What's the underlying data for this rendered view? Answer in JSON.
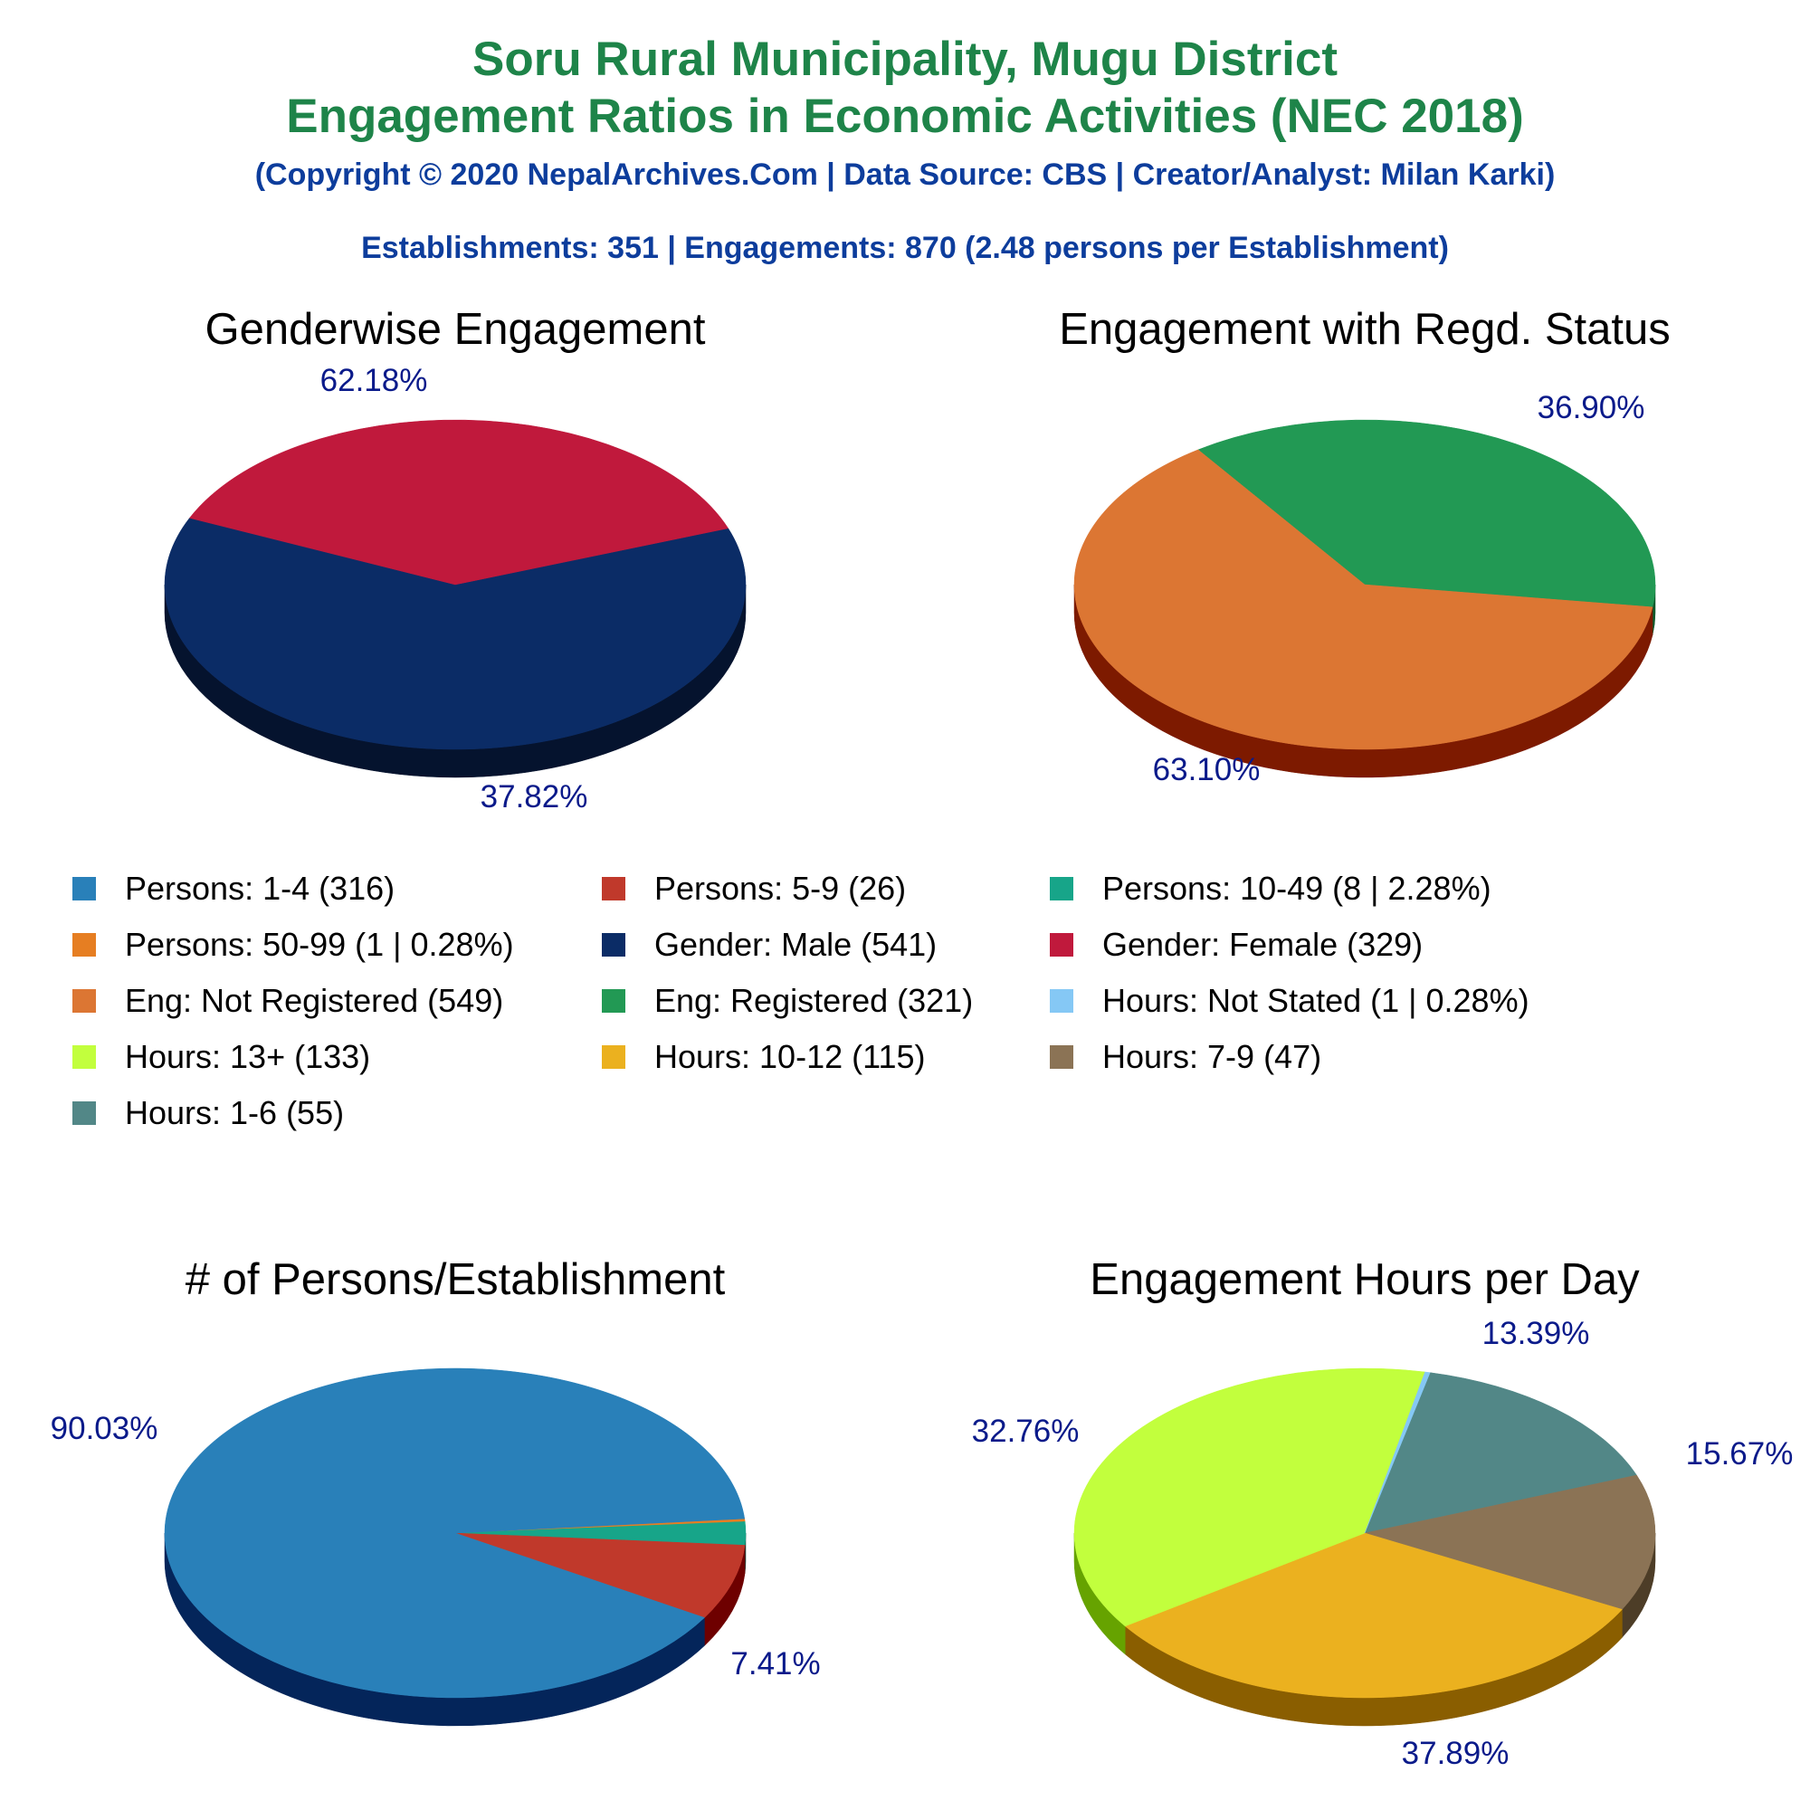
{
  "header": {
    "title_line1": "Soru Rural Municipality, Mugu District",
    "title_line2": "Engagement Ratios in Economic Activities (NEC 2018)",
    "copyright": "(Copyright © 2020 NepalArchives.Com | Data Source: CBS | Creator/Analyst: Milan Karki)",
    "summary": "Establishments: 351 | Engagements: 870 (2.48 persons per Establishment)"
  },
  "legend": [
    {
      "label": "Persons: 1-4 (316)",
      "color": "#2980b9"
    },
    {
      "label": "Persons: 5-9 (26)",
      "color": "#c0392b"
    },
    {
      "label": "Persons: 10-49 (8 | 2.28%)",
      "color": "#17a589"
    },
    {
      "label": "Persons: 50-99 (1 | 0.28%)",
      "color": "#e67e22"
    },
    {
      "label": "Gender: Male (541)",
      "color": "#0b2c66"
    },
    {
      "label": "Gender: Female (329)",
      "color": "#c0193c"
    },
    {
      "label": "Eng: Not Registered (549)",
      "color": "#dc7633"
    },
    {
      "label": "Eng: Registered (321)",
      "color": "#229954"
    },
    {
      "label": "Hours: Not Stated (1 | 0.28%)",
      "color": "#85c8f5"
    },
    {
      "label": "Hours: 13+ (133)",
      "color": "#c2ff3d"
    },
    {
      "label": "Hours: 10-12 (115)",
      "color": "#ebb11f"
    },
    {
      "label": "Hours: 7-9 (47)",
      "color": "#8b7355"
    },
    {
      "label": "Hours: 1-6 (55)",
      "color": "#528787"
    }
  ],
  "chart_data": [
    {
      "type": "pie",
      "title": "Genderwise Engagement",
      "slices": [
        {
          "label": "Gender: Male",
          "value": 541,
          "percent_label": "62.18%",
          "color": "#0b2c66",
          "side": "#05132e"
        },
        {
          "label": "Gender: Female",
          "value": 329,
          "percent_label": "37.82%",
          "color": "#c0193c",
          "side": "#640000"
        }
      ]
    },
    {
      "type": "pie",
      "title": "Engagement with Regd. Status",
      "slices": [
        {
          "label": "Eng: Registered",
          "value": 321,
          "percent_label": "36.90%",
          "color": "#229954",
          "side": "#0f5a2c"
        },
        {
          "label": "Eng: Not Registered",
          "value": 549,
          "percent_label": "63.10%",
          "color": "#dc7633",
          "side": "#7d1a00"
        }
      ]
    },
    {
      "type": "pie",
      "title": "# of Persons/Establishment",
      "slices": [
        {
          "label": "Persons: 50-99",
          "value": 1,
          "percent_label": "",
          "color": "#e67e22",
          "side": "#8a4300"
        },
        {
          "label": "Persons: 10-49",
          "value": 8,
          "percent_label": "",
          "color": "#17a589",
          "side": "#0a4a3e"
        },
        {
          "label": "Persons: 5-9",
          "value": 26,
          "percent_label": "7.41%",
          "color": "#c0392b",
          "side": "#6e0000"
        },
        {
          "label": "Persons: 1-4",
          "value": 316,
          "percent_label": "90.03%",
          "color": "#2980b9",
          "side": "#04255a"
        }
      ]
    },
    {
      "type": "pie",
      "title": "Engagement Hours per Day",
      "slices": [
        {
          "label": "Hours: 1-6",
          "value": 55,
          "percent_label": "15.67%",
          "color": "#528787",
          "side": "#2c5050"
        },
        {
          "label": "Hours: 7-9",
          "value": 47,
          "percent_label": "13.39%",
          "color": "#8b7355",
          "side": "#4d3d27"
        },
        {
          "label": "Hours: 10-12",
          "value": 115,
          "percent_label": "32.76%",
          "color": "#ebb11f",
          "side": "#8a5e00"
        },
        {
          "label": "Hours: 13+",
          "value": 133,
          "percent_label": "37.89%",
          "color": "#c2ff3d",
          "side": "#66a300"
        },
        {
          "label": "Hours: Not Stated",
          "value": 1,
          "percent_label": "",
          "color": "#85c8f5",
          "side": "#3a7fa8"
        }
      ]
    }
  ]
}
